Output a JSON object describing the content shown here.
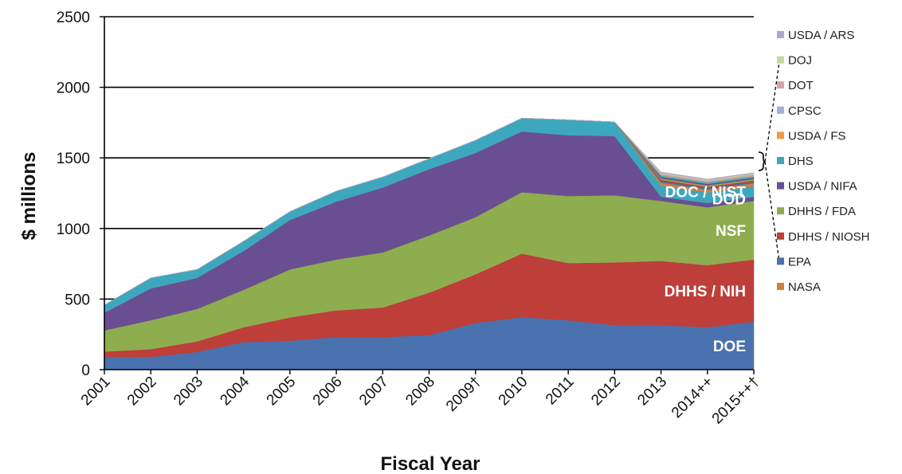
{
  "chart_data": {
    "type": "area",
    "stacked": true,
    "xlabel": "Fiscal Year",
    "ylabel": "$ millions",
    "ylim": [
      0,
      2500
    ],
    "yticks": [
      0,
      500,
      1000,
      1500,
      2000,
      2500
    ],
    "grid": "horizontal",
    "legend_position": "right",
    "categories": [
      "2001",
      "2002",
      "2003",
      "2004",
      "2005",
      "2006",
      "2007",
      "2008",
      "2009†",
      "2010",
      "2011",
      "2012",
      "2013",
      "2014++",
      "2015++†"
    ],
    "series": [
      {
        "name": "DOE",
        "color": "#4A72AE",
        "values": [
          88,
          90,
          125,
          195,
          205,
          230,
          230,
          245,
          330,
          372,
          350,
          315,
          315,
          300,
          340
        ]
      },
      {
        "name": "DHHS / NIH",
        "color": "#BE3E3A",
        "values": [
          40,
          55,
          75,
          105,
          165,
          190,
          210,
          300,
          345,
          450,
          405,
          445,
          455,
          440,
          440
        ]
      },
      {
        "name": "NSF",
        "color": "#8EAD4F",
        "values": [
          150,
          205,
          230,
          265,
          340,
          360,
          390,
          405,
          405,
          435,
          475,
          475,
          425,
          410,
          415
        ]
      },
      {
        "name": "DOD",
        "color": "#6A4E92",
        "values": [
          125,
          225,
          220,
          275,
          350,
          410,
          460,
          470,
          455,
          430,
          430,
          420,
          30,
          30,
          30
        ]
      },
      {
        "name": "DOC / NIST",
        "color": "#3DA7BE",
        "values": [
          55,
          75,
          60,
          70,
          60,
          75,
          75,
          75,
          90,
          95,
          110,
          100,
          80,
          75,
          75
        ]
      },
      {
        "name": "NASA",
        "color": "#D0803A",
        "values": [
          0,
          0,
          0,
          0,
          0,
          0,
          0,
          0,
          0,
          0,
          0,
          0,
          20,
          20,
          20
        ]
      },
      {
        "name": "EPA",
        "color": "#4A72AE",
        "values": [
          0,
          0,
          0,
          0,
          0,
          0,
          0,
          0,
          0,
          0,
          0,
          0,
          10,
          10,
          10
        ]
      },
      {
        "name": "DHHS / NIOSH",
        "color": "#BE3E3A",
        "values": [
          0,
          0,
          0,
          0,
          0,
          0,
          0,
          0,
          0,
          0,
          0,
          0,
          10,
          10,
          10
        ]
      },
      {
        "name": "DHHS / FDA",
        "color": "#8EAD4F",
        "values": [
          0,
          0,
          0,
          0,
          0,
          0,
          0,
          0,
          0,
          0,
          0,
          0,
          10,
          10,
          10
        ]
      },
      {
        "name": "USDA / NIFA",
        "color": "#6A4E92",
        "values": [
          0,
          0,
          0,
          0,
          0,
          0,
          0,
          0,
          0,
          0,
          0,
          0,
          10,
          10,
          10
        ]
      },
      {
        "name": "DHS",
        "color": "#3DA7BE",
        "values": [
          0,
          0,
          0,
          0,
          0,
          0,
          0,
          0,
          0,
          0,
          0,
          0,
          10,
          10,
          10
        ]
      },
      {
        "name": "USDA / FS",
        "color": "#F09A4A",
        "values": [
          0,
          0,
          0,
          0,
          0,
          0,
          0,
          0,
          0,
          0,
          0,
          0,
          5,
          5,
          5
        ]
      },
      {
        "name": "CPSC",
        "color": "#9FB3D6",
        "values": [
          0,
          0,
          0,
          0,
          0,
          0,
          0,
          0,
          0,
          0,
          0,
          0,
          5,
          5,
          5
        ]
      },
      {
        "name": "DOT",
        "color": "#D6A3A3",
        "values": [
          0,
          0,
          0,
          0,
          0,
          0,
          0,
          0,
          0,
          0,
          0,
          0,
          5,
          5,
          5
        ]
      },
      {
        "name": "DOJ",
        "color": "#C3D9A0",
        "values": [
          0,
          0,
          0,
          0,
          0,
          0,
          0,
          0,
          0,
          0,
          0,
          0,
          5,
          5,
          5
        ]
      },
      {
        "name": "USDA / ARS",
        "color": "#B3A5C8",
        "values": [
          0,
          0,
          0,
          0,
          0,
          0,
          0,
          0,
          0,
          0,
          0,
          0,
          5,
          5,
          5
        ]
      }
    ],
    "area_labels": [
      "DOE",
      "DHHS / NIH",
      "NSF",
      "DOD",
      "DOC / NIST"
    ],
    "legend": [
      {
        "name": "USDA / ARS",
        "color": "#B3A5C8"
      },
      {
        "name": "DOJ",
        "color": "#C3D9A0"
      },
      {
        "name": "DOT",
        "color": "#D6A3A3"
      },
      {
        "name": "CPSC",
        "color": "#9FB3D6"
      },
      {
        "name": "USDA / FS",
        "color": "#F09A4A"
      },
      {
        "name": "DHS",
        "color": "#3DA7BE"
      },
      {
        "name": "USDA / NIFA",
        "color": "#6A4E92"
      },
      {
        "name": "DHHS / FDA",
        "color": "#8EAD4F"
      },
      {
        "name": "DHHS / NIOSH",
        "color": "#BE3E3A"
      },
      {
        "name": "EPA",
        "color": "#4A72AE"
      },
      {
        "name": "NASA",
        "color": "#D0803A"
      }
    ]
  }
}
